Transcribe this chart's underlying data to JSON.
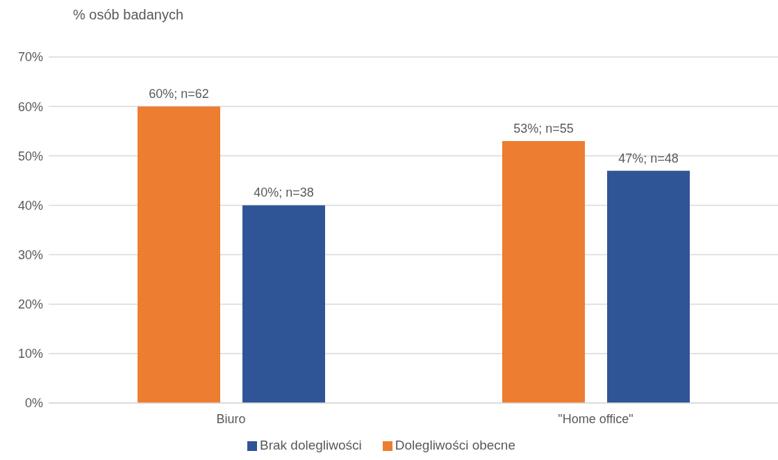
{
  "chart_data": {
    "type": "bar",
    "ylabel": "% osób badanych",
    "categories": [
      "Biuro",
      "\"Home office\""
    ],
    "series": [
      {
        "name": "Dolegliwości obecne",
        "color": "#ed7d31",
        "values": [
          60,
          53
        ],
        "value_labels": [
          "60%; n=62",
          "53%; n=55"
        ]
      },
      {
        "name": "Brak dolegliwości",
        "color": "#2f5597",
        "values": [
          40,
          47
        ],
        "value_labels": [
          "40%; n=38",
          "47%; n=48"
        ]
      }
    ],
    "ylim": [
      0,
      70
    ],
    "yticks": [
      {
        "value": 0,
        "label": "0%"
      },
      {
        "value": 10,
        "label": "10%"
      },
      {
        "value": 20,
        "label": "20%"
      },
      {
        "value": 30,
        "label": "30%"
      },
      {
        "value": 40,
        "label": "40%"
      },
      {
        "value": 50,
        "label": "50%"
      },
      {
        "value": 60,
        "label": "60%"
      },
      {
        "value": 70,
        "label": "70%"
      }
    ],
    "grid": "y",
    "legend": "bottom"
  }
}
